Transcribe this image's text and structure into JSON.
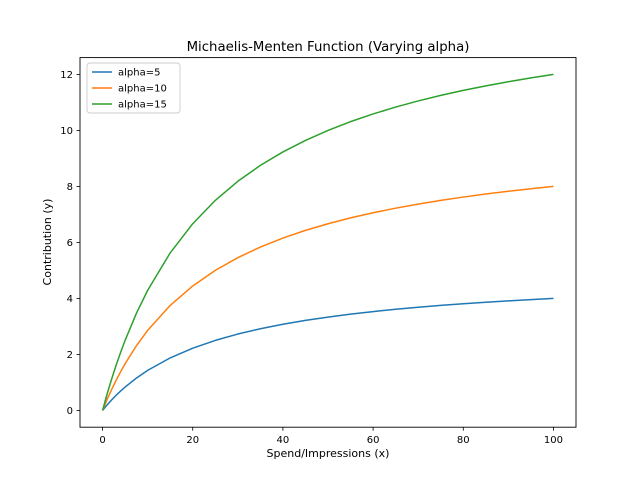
{
  "chart_data": {
    "type": "line",
    "title": "Michaelis-Menten Function (Varying alpha)",
    "xlabel": "Spend/Impressions (x)",
    "ylabel": "Contribution (y)",
    "xlim": [
      -5,
      105
    ],
    "ylim": [
      -0.6,
      12.6
    ],
    "xticks": [
      0,
      20,
      40,
      60,
      80,
      100
    ],
    "yticks": [
      0,
      2,
      4,
      6,
      8,
      10,
      12
    ],
    "grid": false,
    "legend_position": "top-left",
    "x": [
      0,
      1,
      2,
      3,
      4,
      5,
      7.5,
      10,
      15,
      20,
      25,
      30,
      35,
      40,
      45,
      50,
      55,
      60,
      65,
      70,
      75,
      80,
      85,
      90,
      95,
      100
    ],
    "series": [
      {
        "name": "alpha=5",
        "color": "#1f77b4",
        "values": [
          0,
          0.192,
          0.37,
          0.536,
          0.69,
          0.833,
          1.154,
          1.429,
          1.875,
          2.222,
          2.5,
          2.727,
          2.917,
          3.077,
          3.214,
          3.333,
          3.438,
          3.529,
          3.611,
          3.684,
          3.75,
          3.81,
          3.864,
          3.913,
          3.958,
          4.0
        ]
      },
      {
        "name": "alpha=10",
        "color": "#ff7f0e",
        "values": [
          0,
          0.385,
          0.741,
          1.071,
          1.379,
          1.667,
          2.308,
          2.857,
          3.75,
          4.444,
          5,
          5.455,
          5.833,
          6.154,
          6.429,
          6.667,
          6.875,
          7.059,
          7.222,
          7.368,
          7.5,
          7.619,
          7.727,
          7.826,
          7.917,
          8.0
        ]
      },
      {
        "name": "alpha=15",
        "color": "#2ca02c",
        "values": [
          0,
          0.577,
          1.111,
          1.607,
          2.069,
          2.5,
          3.462,
          4.286,
          5.625,
          6.667,
          7.5,
          8.182,
          8.75,
          9.231,
          9.643,
          10,
          10.313,
          10.588,
          10.833,
          11.053,
          11.25,
          11.429,
          11.591,
          11.739,
          11.875,
          12.0
        ]
      }
    ]
  }
}
